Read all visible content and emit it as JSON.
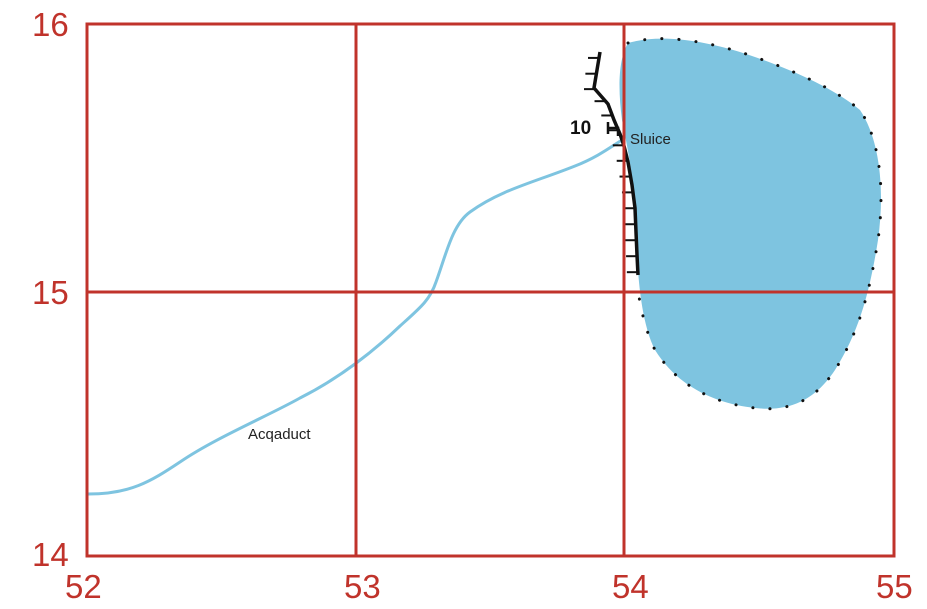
{
  "colors": {
    "background": "#000000",
    "panel": "#ffffff",
    "grid": "#c0332b",
    "water": "#7ec4e0",
    "canal": "#7ec4e0",
    "shore_dots": "#111111",
    "dam": "#111111"
  },
  "axes": {
    "x_ticks": [
      "52",
      "53",
      "54",
      "55"
    ],
    "y_ticks": [
      "16",
      "15",
      "14"
    ]
  },
  "labels": {
    "acqaduct": "Acqaduct",
    "sluice": "Sluice",
    "contour": "10"
  },
  "features": {
    "lake": "reservoir-lake",
    "canal": "acqaduct-canal",
    "dam": "dam-wall-hatched"
  }
}
